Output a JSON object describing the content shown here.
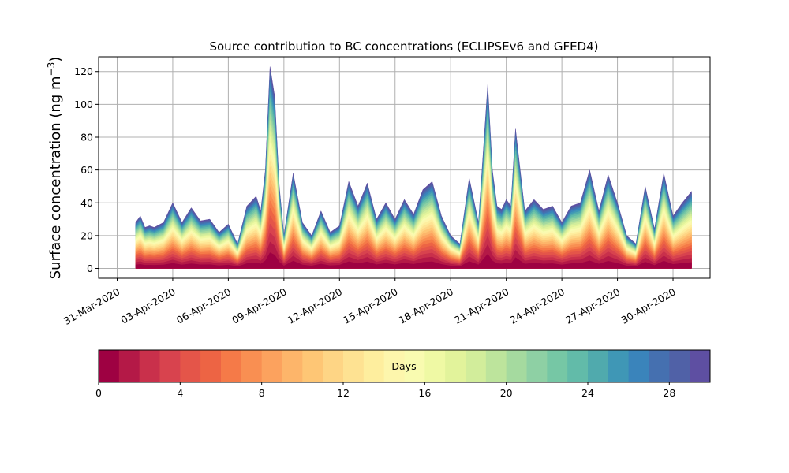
{
  "chart_data": {
    "type": "area",
    "stacked": true,
    "title": "Source contribution to BC concentrations (ECLIPSEv6 and GFED4)",
    "ylabel_main": "Surface concentration (ng m",
    "ylabel_sup": "−3",
    "ylabel_close": ")",
    "ylim": [
      -6,
      129
    ],
    "yticks": [
      0,
      20,
      40,
      60,
      80,
      100,
      120
    ],
    "grid": true,
    "x_ticks": [
      "31-Mar-2020",
      "03-Apr-2020",
      "06-Apr-2020",
      "09-Apr-2020",
      "12-Apr-2020",
      "15-Apr-2020",
      "18-Apr-2020",
      "21-Apr-2020",
      "24-Apr-2020",
      "27-Apr-2020",
      "30-Apr-2020"
    ],
    "x_range_days": [
      "30-Mar-2020",
      "02-May-2020"
    ],
    "total": {
      "x": [
        "01-Apr-2020",
        "01-Apr-2020 06:00",
        "01-Apr-2020 12:00",
        "01-Apr-2020 18:00",
        "02-Apr-2020",
        "02-Apr-2020 12:00",
        "03-Apr-2020",
        "03-Apr-2020 12:00",
        "04-Apr-2020",
        "04-Apr-2020 12:00",
        "05-Apr-2020",
        "05-Apr-2020 12:00",
        "06-Apr-2020",
        "06-Apr-2020 12:00",
        "07-Apr-2020",
        "07-Apr-2020 12:00",
        "07-Apr-2020 18:00",
        "08-Apr-2020",
        "08-Apr-2020 06:00",
        "08-Apr-2020 12:00",
        "08-Apr-2020 18:00",
        "09-Apr-2020",
        "09-Apr-2020 12:00",
        "10-Apr-2020",
        "10-Apr-2020 12:00",
        "11-Apr-2020",
        "11-Apr-2020 12:00",
        "12-Apr-2020",
        "12-Apr-2020 12:00",
        "13-Apr-2020",
        "13-Apr-2020 12:00",
        "14-Apr-2020",
        "14-Apr-2020 12:00",
        "15-Apr-2020",
        "15-Apr-2020 12:00",
        "16-Apr-2020",
        "16-Apr-2020 12:00",
        "17-Apr-2020",
        "17-Apr-2020 12:00",
        "18-Apr-2020",
        "18-Apr-2020 12:00",
        "19-Apr-2020",
        "19-Apr-2020 12:00",
        "20-Apr-2020",
        "20-Apr-2020 06:00",
        "20-Apr-2020 12:00",
        "20-Apr-2020 18:00",
        "21-Apr-2020",
        "21-Apr-2020 06:00",
        "21-Apr-2020 12:00",
        "22-Apr-2020",
        "22-Apr-2020 12:00",
        "23-Apr-2020",
        "23-Apr-2020 12:00",
        "24-Apr-2020",
        "24-Apr-2020 12:00",
        "25-Apr-2020",
        "25-Apr-2020 12:00",
        "26-Apr-2020",
        "26-Apr-2020 12:00",
        "27-Apr-2020",
        "27-Apr-2020 12:00",
        "28-Apr-2020",
        "28-Apr-2020 12:00",
        "29-Apr-2020",
        "29-Apr-2020 12:00",
        "30-Apr-2020",
        "30-Apr-2020 12:00",
        "01-May-2020"
      ],
      "values": [
        28,
        32,
        25,
        26,
        25,
        28,
        40,
        28,
        37,
        29,
        30,
        22,
        27,
        15,
        38,
        44,
        35,
        60,
        123,
        105,
        50,
        20,
        58,
        28,
        20,
        35,
        22,
        26,
        53,
        38,
        52,
        30,
        40,
        30,
        42,
        33,
        48,
        53,
        32,
        20,
        15,
        55,
        28,
        112,
        60,
        38,
        36,
        42,
        38,
        85,
        35,
        42,
        36,
        38,
        28,
        38,
        40,
        60,
        35,
        57,
        40,
        20,
        15,
        50,
        24,
        58,
        32,
        40,
        47
      ]
    },
    "colorbar": {
      "label": "Days",
      "ticks": [
        0,
        4,
        8,
        12,
        16,
        20,
        24,
        28
      ],
      "range": [
        0,
        30
      ],
      "colors": [
        "#9e0142",
        "#b41947",
        "#c9304b",
        "#d8434e",
        "#e45549",
        "#ed6444",
        "#f57a48",
        "#f98f52",
        "#fca25e",
        "#fdb56a",
        "#fec675",
        "#fed585",
        "#fee292",
        "#feee9e",
        "#fdf6ac",
        "#f9fbb0",
        "#eff9a4",
        "#e2f39b",
        "#d2ed9b",
        "#bde49c",
        "#a5da9f",
        "#8ed0a4",
        "#76c7a5",
        "#62bba9",
        "#50aaad",
        "#3f97b6",
        "#3a84bb",
        "#4570b0",
        "#5061a7",
        "#5e4fa2"
      ]
    }
  }
}
